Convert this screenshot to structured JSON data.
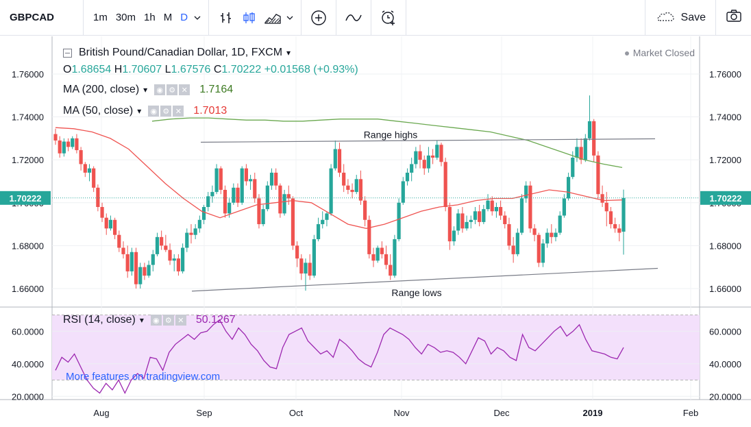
{
  "toolbar": {
    "symbol": "GBPCAD",
    "intervals": [
      "1m",
      "30m",
      "1h",
      "M",
      "D"
    ],
    "active_interval": "D",
    "save_label": "Save"
  },
  "legend": {
    "title": "British Pound/Canadian Dollar, 1D, FXCM",
    "open_label": "O",
    "open": "1.68654",
    "high_label": "H",
    "high": "1.70607",
    "low_label": "L",
    "low": "1.67576",
    "close_label": "C",
    "close": "1.70222",
    "change": "+0.01568 (+0.93%)",
    "ma200_label": "MA (200, close)",
    "ma200_value": "1.7164",
    "ma50_label": "MA (50, close)",
    "ma50_value": "1.7013",
    "market_status": "Market Closed",
    "rsi_label": "RSI (14, close)",
    "rsi_value": "50.1267"
  },
  "promo_text": "More features on tradingview.com",
  "annotations": {
    "range_highs": "Range highs",
    "range_lows": "Range lows"
  },
  "colors": {
    "up": "#26a69a",
    "down": "#ef5350",
    "ma50": "#ef5350",
    "ma200": "#6aa84f",
    "rsi": "#9c27b0",
    "accent": "#2962ff"
  },
  "chart_data": {
    "type": "candlestick",
    "price_axis": {
      "ticks": [
        "1.76000",
        "1.74000",
        "1.72000",
        "1.70000",
        "1.68000",
        "1.66000"
      ],
      "ylim": [
        1.652,
        1.775
      ],
      "current_price_label": "1.70222"
    },
    "time_axis": {
      "ticks": [
        "Aug",
        "Sep",
        "Oct",
        "Nov",
        "Dec",
        "2019",
        "Feb"
      ]
    },
    "rsi_axis": {
      "ticks": [
        "60.0000",
        "40.0000",
        "20.0000"
      ],
      "ylim": [
        18,
        74
      ],
      "band": [
        30,
        70
      ]
    },
    "candles": [
      [
        1.732,
        1.7345,
        1.727,
        1.729
      ],
      [
        1.729,
        1.731,
        1.721,
        1.723
      ],
      [
        1.723,
        1.73,
        1.7215,
        1.7285
      ],
      [
        1.7285,
        1.73,
        1.724,
        1.726
      ],
      [
        1.726,
        1.731,
        1.725,
        1.73
      ],
      [
        1.73,
        1.732,
        1.723,
        1.7245
      ],
      [
        1.7245,
        1.726,
        1.715,
        1.718
      ],
      [
        1.718,
        1.719,
        1.712,
        1.714
      ],
      [
        1.714,
        1.718,
        1.71,
        1.716
      ],
      [
        1.716,
        1.717,
        1.705,
        1.707
      ],
      [
        1.707,
        1.7085,
        1.696,
        1.698
      ],
      [
        1.698,
        1.7,
        1.691,
        1.693
      ],
      [
        1.693,
        1.695,
        1.685,
        1.688
      ],
      [
        1.688,
        1.694,
        1.687,
        1.692
      ],
      [
        1.692,
        1.693,
        1.683,
        1.685
      ],
      [
        1.685,
        1.687,
        1.677,
        1.679
      ],
      [
        1.679,
        1.682,
        1.674,
        1.676
      ],
      [
        1.676,
        1.68,
        1.665,
        1.668
      ],
      [
        1.668,
        1.679,
        1.666,
        1.677
      ],
      [
        1.677,
        1.679,
        1.66,
        1.662
      ],
      [
        1.662,
        1.672,
        1.66,
        1.67
      ],
      [
        1.67,
        1.672,
        1.664,
        1.666
      ],
      [
        1.666,
        1.673,
        1.665,
        1.671
      ],
      [
        1.671,
        1.678,
        1.668,
        1.676
      ],
      [
        1.676,
        1.686,
        1.675,
        1.684
      ],
      [
        1.684,
        1.687,
        1.678,
        1.68
      ],
      [
        1.68,
        1.685,
        1.677,
        1.678
      ],
      [
        1.678,
        1.681,
        1.671,
        1.673
      ],
      [
        1.673,
        1.676,
        1.668,
        1.674
      ],
      [
        1.674,
        1.676,
        1.666,
        1.668
      ],
      [
        1.668,
        1.681,
        1.667,
        1.679
      ],
      [
        1.679,
        1.688,
        1.677,
        1.686
      ],
      [
        1.686,
        1.69,
        1.681,
        1.685
      ],
      [
        1.685,
        1.69,
        1.683,
        1.688
      ],
      [
        1.688,
        1.694,
        1.686,
        1.692
      ],
      [
        1.692,
        1.699,
        1.69,
        1.698
      ],
      [
        1.698,
        1.705,
        1.696,
        1.703
      ],
      [
        1.703,
        1.708,
        1.7,
        1.705
      ],
      [
        1.705,
        1.718,
        1.704,
        1.716
      ],
      [
        1.716,
        1.717,
        1.704,
        1.706
      ],
      [
        1.706,
        1.708,
        1.693,
        1.695
      ],
      [
        1.695,
        1.702,
        1.693,
        1.7
      ],
      [
        1.7,
        1.709,
        1.699,
        1.707
      ],
      [
        1.707,
        1.709,
        1.698,
        1.7
      ],
      [
        1.7,
        1.717,
        1.699,
        1.716
      ],
      [
        1.716,
        1.718,
        1.708,
        1.71
      ],
      [
        1.71,
        1.713,
        1.706,
        1.711
      ],
      [
        1.711,
        1.714,
        1.7,
        1.702
      ],
      [
        1.702,
        1.704,
        1.688,
        1.69
      ],
      [
        1.69,
        1.699,
        1.689,
        1.697
      ],
      [
        1.697,
        1.71,
        1.696,
        1.708
      ],
      [
        1.708,
        1.716,
        1.706,
        1.714
      ],
      [
        1.714,
        1.716,
        1.706,
        1.708
      ],
      [
        1.708,
        1.709,
        1.693,
        1.695
      ],
      [
        1.695,
        1.706,
        1.694,
        1.704
      ],
      [
        1.704,
        1.708,
        1.699,
        1.702
      ],
      [
        1.702,
        1.703,
        1.678,
        1.68
      ],
      [
        1.68,
        1.682,
        1.67,
        1.674
      ],
      [
        1.674,
        1.676,
        1.664,
        1.667
      ],
      [
        1.667,
        1.674,
        1.659,
        1.672
      ],
      [
        1.672,
        1.676,
        1.664,
        1.666
      ],
      [
        1.666,
        1.685,
        1.665,
        1.683
      ],
      [
        1.683,
        1.693,
        1.682,
        1.69
      ],
      [
        1.69,
        1.696,
        1.688,
        1.692
      ],
      [
        1.692,
        1.696,
        1.689,
        1.695
      ],
      [
        1.695,
        1.718,
        1.694,
        1.716
      ],
      [
        1.716,
        1.729,
        1.715,
        1.725
      ],
      [
        1.725,
        1.728,
        1.712,
        1.714
      ],
      [
        1.714,
        1.718,
        1.705,
        1.708
      ],
      [
        1.708,
        1.711,
        1.704,
        1.706
      ],
      [
        1.706,
        1.709,
        1.702,
        1.705
      ],
      [
        1.705,
        1.713,
        1.704,
        1.711
      ],
      [
        1.711,
        1.715,
        1.699,
        1.701
      ],
      [
        1.701,
        1.703,
        1.689,
        1.692
      ],
      [
        1.692,
        1.694,
        1.674,
        1.676
      ],
      [
        1.676,
        1.679,
        1.67,
        1.673
      ],
      [
        1.673,
        1.68,
        1.672,
        1.679
      ],
      [
        1.679,
        1.682,
        1.674,
        1.676
      ],
      [
        1.676,
        1.68,
        1.669,
        1.671
      ],
      [
        1.671,
        1.676,
        1.664,
        1.666
      ],
      [
        1.666,
        1.685,
        1.665,
        1.683
      ],
      [
        1.683,
        1.702,
        1.682,
        1.7
      ],
      [
        1.7,
        1.712,
        1.699,
        1.71
      ],
      [
        1.71,
        1.716,
        1.708,
        1.714
      ],
      [
        1.714,
        1.721,
        1.71,
        1.718
      ],
      [
        1.718,
        1.726,
        1.716,
        1.724
      ],
      [
        1.724,
        1.727,
        1.716,
        1.72
      ],
      [
        1.72,
        1.722,
        1.713,
        1.716
      ],
      [
        1.716,
        1.726,
        1.714,
        1.722
      ],
      [
        1.722,
        1.725,
        1.718,
        1.721
      ],
      [
        1.721,
        1.729,
        1.72,
        1.727
      ],
      [
        1.727,
        1.728,
        1.717,
        1.719
      ],
      [
        1.719,
        1.721,
        1.696,
        1.698
      ],
      [
        1.698,
        1.7,
        1.678,
        1.682
      ],
      [
        1.682,
        1.689,
        1.68,
        1.687
      ],
      [
        1.687,
        1.697,
        1.685,
        1.695
      ],
      [
        1.695,
        1.698,
        1.686,
        1.688
      ],
      [
        1.688,
        1.694,
        1.687,
        1.691
      ],
      [
        1.691,
        1.694,
        1.688,
        1.692
      ],
      [
        1.692,
        1.698,
        1.69,
        1.696
      ],
      [
        1.696,
        1.699,
        1.689,
        1.691
      ],
      [
        1.691,
        1.699,
        1.69,
        1.697
      ],
      [
        1.697,
        1.704,
        1.696,
        1.701
      ],
      [
        1.701,
        1.703,
        1.694,
        1.696
      ],
      [
        1.696,
        1.7,
        1.693,
        1.698
      ],
      [
        1.698,
        1.701,
        1.692,
        1.694
      ],
      [
        1.694,
        1.696,
        1.688,
        1.69
      ],
      [
        1.69,
        1.693,
        1.678,
        1.68
      ],
      [
        1.68,
        1.684,
        1.672,
        1.676
      ],
      [
        1.676,
        1.688,
        1.675,
        1.686
      ],
      [
        1.686,
        1.704,
        1.685,
        1.702
      ],
      [
        1.702,
        1.71,
        1.7,
        1.708
      ],
      [
        1.708,
        1.71,
        1.686,
        1.688
      ],
      [
        1.688,
        1.69,
        1.682,
        1.685
      ],
      [
        1.685,
        1.686,
        1.67,
        1.672
      ],
      [
        1.672,
        1.683,
        1.67,
        1.681
      ],
      [
        1.681,
        1.688,
        1.679,
        1.686
      ],
      [
        1.686,
        1.69,
        1.681,
        1.684
      ],
      [
        1.684,
        1.688,
        1.682,
        1.686
      ],
      [
        1.686,
        1.696,
        1.685,
        1.694
      ],
      [
        1.694,
        1.704,
        1.693,
        1.702
      ],
      [
        1.702,
        1.714,
        1.701,
        1.712
      ],
      [
        1.712,
        1.724,
        1.711,
        1.721
      ],
      [
        1.721,
        1.73,
        1.719,
        1.726
      ],
      [
        1.726,
        1.73,
        1.718,
        1.72
      ],
      [
        1.72,
        1.732,
        1.719,
        1.73
      ],
      [
        1.73,
        1.75,
        1.729,
        1.738
      ],
      [
        1.738,
        1.739,
        1.719,
        1.722
      ],
      [
        1.722,
        1.724,
        1.702,
        1.704
      ],
      [
        1.704,
        1.708,
        1.698,
        1.7
      ],
      [
        1.7,
        1.705,
        1.689,
        1.696
      ],
      [
        1.696,
        1.698,
        1.688,
        1.69
      ],
      [
        1.69,
        1.693,
        1.686,
        1.688
      ],
      [
        1.688,
        1.69,
        1.682,
        1.686
      ],
      [
        1.6865,
        1.7061,
        1.6758,
        1.7022
      ]
    ],
    "ma50": [
      1.735,
      1.7345,
      1.733,
      1.73,
      1.725,
      1.717,
      1.709,
      1.702,
      1.696,
      1.693,
      1.696,
      1.699,
      1.7,
      1.701,
      1.7,
      1.695,
      1.69,
      1.688,
      1.69,
      1.693,
      1.696,
      1.698,
      1.699,
      1.701,
      1.702,
      1.702,
      1.704,
      1.706,
      1.705,
      1.703,
      1.701,
      1.7013
    ],
    "ma200": [
      1.738,
      1.739,
      1.7395,
      1.7395,
      1.739,
      1.7385,
      1.7385,
      1.738,
      1.738,
      1.7385,
      1.739,
      1.739,
      1.739,
      1.738,
      1.737,
      1.736,
      1.735,
      1.734,
      1.733,
      1.731,
      1.729,
      1.726,
      1.723,
      1.72,
      1.718,
      1.7164
    ],
    "rsi": [
      36,
      44,
      41,
      46,
      38,
      30,
      25,
      22,
      28,
      24,
      30,
      22,
      30,
      34,
      31,
      44,
      43,
      36,
      47,
      52,
      55,
      58,
      55,
      59,
      60,
      64,
      67,
      60,
      55,
      62,
      58,
      52,
      48,
      42,
      38,
      37,
      50,
      58,
      60,
      62,
      54,
      50,
      46,
      48,
      44,
      55,
      52,
      48,
      43,
      40,
      38,
      47,
      58,
      62,
      60,
      58,
      55,
      50,
      46,
      52,
      50,
      47,
      48,
      47,
      44,
      40,
      48,
      56,
      54,
      46,
      50,
      48,
      44,
      42,
      58,
      50,
      48,
      52,
      56,
      60,
      63,
      57,
      60,
      64,
      55,
      48,
      47,
      46,
      44,
      43,
      50
    ]
  }
}
